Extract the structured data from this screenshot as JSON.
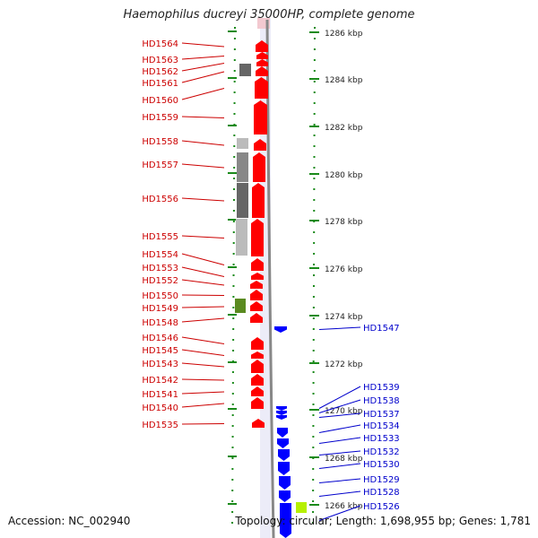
{
  "title": "Haemophilus ducreyi 35000HP, complete genome",
  "footer": {
    "accession": "Accession: NC_002940",
    "summary": "Topology: circular; Length: 1,698,955 bp; Genes: 1,781"
  },
  "colors": {
    "forward_strand": "#ff0000",
    "reverse_strand": "#0000ff",
    "forward_label": "#cc0000",
    "reverse_label": "#0000cc",
    "backbone": "#888888",
    "tick": "#1a8a1a"
  },
  "scale_ticks": [
    {
      "kbp": 1286,
      "label": "1286 kbp"
    },
    {
      "kbp": 1284,
      "label": "1284 kbp"
    },
    {
      "kbp": 1282,
      "label": "1282 kbp"
    },
    {
      "kbp": 1280,
      "label": "1280 kbp"
    },
    {
      "kbp": 1278,
      "label": "1278 kbp"
    },
    {
      "kbp": 1276,
      "label": "1276 kbp"
    },
    {
      "kbp": 1274,
      "label": "1274 kbp"
    },
    {
      "kbp": 1272,
      "label": "1272 kbp"
    },
    {
      "kbp": 1270,
      "label": "1270 kbp"
    },
    {
      "kbp": 1268,
      "label": "1268 kbp"
    },
    {
      "kbp": 1266,
      "label": "1266 kbp"
    }
  ],
  "forward_genes": [
    "HD1564",
    "HD1563",
    "HD1562",
    "HD1561",
    "HD1560",
    "HD1559",
    "HD1558",
    "HD1557",
    "HD1556",
    "HD1555",
    "HD1554",
    "HD1553",
    "HD1552",
    "HD1550",
    "HD1549",
    "HD1548",
    "HD1546",
    "HD1545",
    "HD1543",
    "HD1542",
    "HD1541",
    "HD1540",
    "HD1535"
  ],
  "reverse_genes": [
    "HD1547",
    "HD1539",
    "HD1538",
    "HD1537",
    "HD1534",
    "HD1533",
    "HD1532",
    "HD1530",
    "HD1529",
    "HD1528",
    "HD1526"
  ]
}
